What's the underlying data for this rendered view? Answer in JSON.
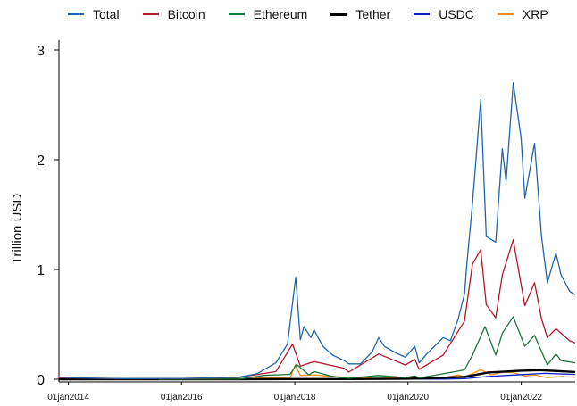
{
  "chart_data": {
    "type": "line",
    "title": "",
    "xlabel": "",
    "ylabel": "Trillion USD",
    "ylim": [
      0,
      3
    ],
    "xlim": [
      "2013-11-01",
      "2022-12-15"
    ],
    "yticks": [
      {
        "value": 0,
        "label": "0"
      },
      {
        "value": 1,
        "label": "1"
      },
      {
        "value": 2,
        "label": "2"
      },
      {
        "value": 3,
        "label": "3"
      }
    ],
    "xticks": [
      {
        "value": "2014-01-01",
        "label": "01jan2014"
      },
      {
        "value": "2016-01-01",
        "label": "01jan2016"
      },
      {
        "value": "2018-01-01",
        "label": "01jan2018"
      },
      {
        "value": "2020-01-01",
        "label": "01jan2020"
      },
      {
        "value": "2022-01-01",
        "label": "01jan2022"
      }
    ],
    "grid": false,
    "legend_position": "top",
    "series": [
      {
        "name": "Total",
        "color": "#2166ac",
        "points": [
          [
            "2013-11-01",
            0.02
          ],
          [
            "2014-01-01",
            0.015
          ],
          [
            "2014-06-01",
            0.01
          ],
          [
            "2015-01-01",
            0.006
          ],
          [
            "2016-01-01",
            0.007
          ],
          [
            "2016-06-01",
            0.012
          ],
          [
            "2017-01-01",
            0.018
          ],
          [
            "2017-05-01",
            0.05
          ],
          [
            "2017-09-01",
            0.15
          ],
          [
            "2017-11-15",
            0.32
          ],
          [
            "2018-01-07",
            0.93
          ],
          [
            "2018-02-06",
            0.36
          ],
          [
            "2018-03-01",
            0.48
          ],
          [
            "2018-04-15",
            0.38
          ],
          [
            "2018-05-05",
            0.45
          ],
          [
            "2018-07-01",
            0.3
          ],
          [
            "2018-09-01",
            0.22
          ],
          [
            "2018-11-15",
            0.17
          ],
          [
            "2018-12-15",
            0.14
          ],
          [
            "2019-03-01",
            0.14
          ],
          [
            "2019-05-15",
            0.25
          ],
          [
            "2019-06-26",
            0.38
          ],
          [
            "2019-08-01",
            0.3
          ],
          [
            "2019-10-15",
            0.24
          ],
          [
            "2019-12-15",
            0.2
          ],
          [
            "2020-02-14",
            0.3
          ],
          [
            "2020-03-13",
            0.15
          ],
          [
            "2020-05-01",
            0.23
          ],
          [
            "2020-08-15",
            0.38
          ],
          [
            "2020-10-01",
            0.35
          ],
          [
            "2020-11-20",
            0.55
          ],
          [
            "2020-12-31",
            0.78
          ],
          [
            "2021-01-15",
            1.05
          ],
          [
            "2021-02-20",
            1.6
          ],
          [
            "2021-04-14",
            2.55
          ],
          [
            "2021-05-20",
            1.3
          ],
          [
            "2021-07-20",
            1.25
          ],
          [
            "2021-09-01",
            2.1
          ],
          [
            "2021-09-25",
            1.8
          ],
          [
            "2021-11-10",
            2.7
          ],
          [
            "2021-12-31",
            2.2
          ],
          [
            "2022-01-24",
            1.65
          ],
          [
            "2022-03-28",
            2.15
          ],
          [
            "2022-05-12",
            1.3
          ],
          [
            "2022-06-18",
            0.88
          ],
          [
            "2022-08-13",
            1.15
          ],
          [
            "2022-09-15",
            0.95
          ],
          [
            "2022-11-09",
            0.8
          ],
          [
            "2022-12-15",
            0.77
          ]
        ]
      },
      {
        "name": "Bitcoin",
        "color": "#b2182b",
        "points": [
          [
            "2013-11-01",
            0.015
          ],
          [
            "2014-01-01",
            0.012
          ],
          [
            "2015-01-01",
            0.004
          ],
          [
            "2016-01-01",
            0.006
          ],
          [
            "2017-01-01",
            0.016
          ],
          [
            "2017-09-01",
            0.07
          ],
          [
            "2017-12-17",
            0.32
          ],
          [
            "2018-02-06",
            0.12
          ],
          [
            "2018-05-05",
            0.16
          ],
          [
            "2018-11-15",
            0.1
          ],
          [
            "2018-12-15",
            0.065
          ],
          [
            "2019-06-26",
            0.23
          ],
          [
            "2019-12-15",
            0.13
          ],
          [
            "2020-02-14",
            0.18
          ],
          [
            "2020-03-13",
            0.09
          ],
          [
            "2020-08-15",
            0.22
          ],
          [
            "2020-12-31",
            0.53
          ],
          [
            "2021-02-20",
            1.05
          ],
          [
            "2021-04-14",
            1.18
          ],
          [
            "2021-05-20",
            0.68
          ],
          [
            "2021-07-20",
            0.56
          ],
          [
            "2021-09-01",
            0.95
          ],
          [
            "2021-11-10",
            1.27
          ],
          [
            "2022-01-24",
            0.67
          ],
          [
            "2022-03-28",
            0.88
          ],
          [
            "2022-05-12",
            0.55
          ],
          [
            "2022-06-18",
            0.38
          ],
          [
            "2022-08-13",
            0.46
          ],
          [
            "2022-11-09",
            0.35
          ],
          [
            "2022-12-15",
            0.33
          ]
        ]
      },
      {
        "name": "Ethereum",
        "color": "#1b7837",
        "points": [
          [
            "2015-08-07",
            0.0
          ],
          [
            "2016-06-01",
            0.001
          ],
          [
            "2017-01-01",
            0.001
          ],
          [
            "2017-06-15",
            0.035
          ],
          [
            "2017-12-01",
            0.045
          ],
          [
            "2018-01-13",
            0.135
          ],
          [
            "2018-04-01",
            0.04
          ],
          [
            "2018-05-05",
            0.07
          ],
          [
            "2018-09-01",
            0.025
          ],
          [
            "2018-12-15",
            0.01
          ],
          [
            "2019-06-26",
            0.034
          ],
          [
            "2019-12-15",
            0.015
          ],
          [
            "2020-02-14",
            0.03
          ],
          [
            "2020-03-13",
            0.012
          ],
          [
            "2020-08-15",
            0.05
          ],
          [
            "2020-12-31",
            0.085
          ],
          [
            "2021-02-20",
            0.22
          ],
          [
            "2021-05-12",
            0.48
          ],
          [
            "2021-07-20",
            0.22
          ],
          [
            "2021-09-01",
            0.42
          ],
          [
            "2021-11-10",
            0.57
          ],
          [
            "2022-01-24",
            0.3
          ],
          [
            "2022-03-28",
            0.4
          ],
          [
            "2022-06-18",
            0.13
          ],
          [
            "2022-08-13",
            0.23
          ],
          [
            "2022-09-15",
            0.17
          ],
          [
            "2022-12-15",
            0.15
          ]
        ]
      },
      {
        "name": "Tether",
        "color": "#000000",
        "points": [
          [
            "2013-11-01",
            0.0
          ],
          [
            "2017-01-01",
            0.0
          ],
          [
            "2018-01-01",
            0.002
          ],
          [
            "2019-01-01",
            0.002
          ],
          [
            "2020-01-01",
            0.005
          ],
          [
            "2020-06-01",
            0.01
          ],
          [
            "2021-01-01",
            0.022
          ],
          [
            "2021-06-01",
            0.062
          ],
          [
            "2022-01-01",
            0.078
          ],
          [
            "2022-05-01",
            0.083
          ],
          [
            "2022-12-15",
            0.066
          ]
        ]
      },
      {
        "name": "USDC",
        "color": "#0b1fc9",
        "points": [
          [
            "2018-10-01",
            0.0
          ],
          [
            "2019-06-01",
            0.0005
          ],
          [
            "2020-01-01",
            0.0005
          ],
          [
            "2020-09-01",
            0.002
          ],
          [
            "2021-01-01",
            0.005
          ],
          [
            "2021-06-01",
            0.025
          ],
          [
            "2022-01-01",
            0.042
          ],
          [
            "2022-06-01",
            0.054
          ],
          [
            "2022-12-15",
            0.044
          ]
        ]
      },
      {
        "name": "XRP",
        "color": "#f28e1c",
        "points": [
          [
            "2013-11-01",
            0.002
          ],
          [
            "2016-01-01",
            0.0002
          ],
          [
            "2017-03-01",
            0.001
          ],
          [
            "2017-05-15",
            0.014
          ],
          [
            "2017-12-01",
            0.01
          ],
          [
            "2018-01-04",
            0.13
          ],
          [
            "2018-02-06",
            0.035
          ],
          [
            "2018-05-05",
            0.04
          ],
          [
            "2018-09-21",
            0.024
          ],
          [
            "2018-12-15",
            0.014
          ],
          [
            "2019-06-26",
            0.02
          ],
          [
            "2019-12-15",
            0.008
          ],
          [
            "2020-02-14",
            0.014
          ],
          [
            "2020-08-15",
            0.013
          ],
          [
            "2020-11-24",
            0.04
          ],
          [
            "2020-12-31",
            0.012
          ],
          [
            "2021-02-01",
            0.04
          ],
          [
            "2021-04-14",
            0.087
          ],
          [
            "2021-06-20",
            0.04
          ],
          [
            "2021-09-06",
            0.065
          ],
          [
            "2021-11-10",
            0.06
          ],
          [
            "2022-01-24",
            0.03
          ],
          [
            "2022-03-28",
            0.04
          ],
          [
            "2022-06-18",
            0.015
          ],
          [
            "2022-09-23",
            0.025
          ],
          [
            "2022-12-15",
            0.017
          ]
        ]
      }
    ]
  }
}
